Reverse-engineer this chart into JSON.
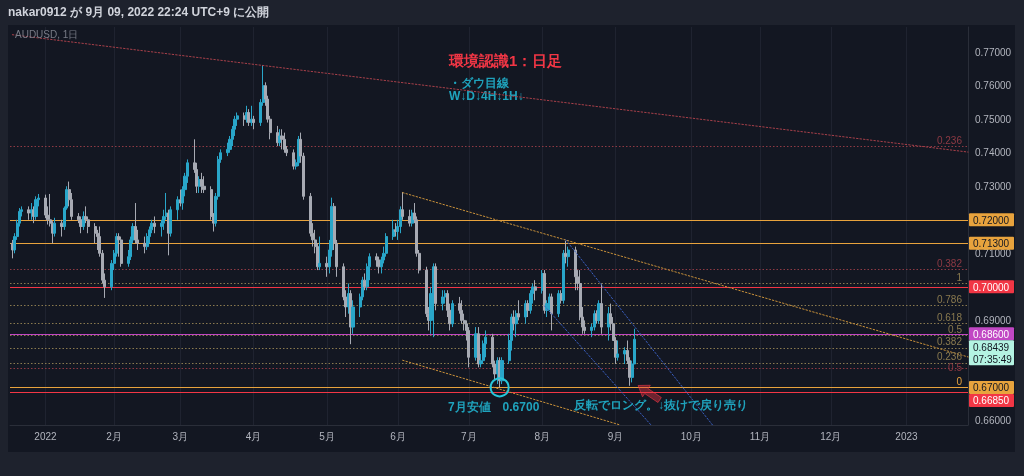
{
  "chart_data": {
    "type": "candlestick",
    "title": "環境認識1：日足",
    "subtitle": "・ダウ目線\nW↓D↓4H↓1H↓",
    "annotations": [
      "nakar0912 が 9月 09, 2022 22:24 UTC+9 に公開",
      "AUDUSD, 1日",
      "0.68439\n07:35:49",
      {
        "text": "7月安値　0.6700",
        "x": "2022-07-14",
        "y": 0.67
      },
      {
        "text": "反転でロング。↓抜けで戻り売り",
        "x": "2022-09-08",
        "y": 0.6685
      },
      {
        "text": "0.236",
        "y": 0.742
      },
      {
        "text": "0.382",
        "y": 0.7053
      },
      {
        "text": "1",
        "y": 0.701
      },
      {
        "text": "0.786",
        "y": 0.6944
      },
      {
        "text": "0.618",
        "y": 0.6892
      },
      {
        "text": "0.5",
        "y": 0.6855
      },
      {
        "text": "0.382",
        "y": 0.6818
      },
      {
        "text": "0.236",
        "y": 0.6773
      },
      {
        "text": "0.5",
        "y": 0.6758
      },
      {
        "text": "0",
        "y": 0.67
      }
    ],
    "xlim": [
      "2021-12-19",
      "2023-01-28"
    ],
    "xticks": [
      {
        "value": "2022-01-03",
        "label": "2022"
      },
      {
        "value": "2022-02-01",
        "label": "2月"
      },
      {
        "value": "2022-03-01",
        "label": "3月"
      },
      {
        "value": "2022-04-01",
        "label": "4月"
      },
      {
        "value": "2022-05-02",
        "label": "5月"
      },
      {
        "value": "2022-06-01",
        "label": "6月"
      },
      {
        "value": "2022-07-01",
        "label": "7月"
      },
      {
        "value": "2022-08-01",
        "label": "8月"
      },
      {
        "value": "2022-09-01",
        "label": "9月"
      },
      {
        "value": "2022-10-03",
        "label": "10月"
      },
      {
        "value": "2022-11-01",
        "label": "11月"
      },
      {
        "value": "2022-12-01",
        "label": "12月"
      },
      {
        "value": "2023-01-02",
        "label": "2023"
      }
    ],
    "ylim": [
      0.6588,
      0.7775
    ],
    "yticks": [
      {
        "value": 0.66,
        "label": "0.66000"
      },
      {
        "value": 0.69,
        "label": "0.69000"
      },
      {
        "value": 0.71,
        "label": "0.71000"
      },
      {
        "value": 0.73,
        "label": "0.73000"
      },
      {
        "value": 0.74,
        "label": "0.74000"
      },
      {
        "value": 0.75,
        "label": "0.75000"
      },
      {
        "value": 0.76,
        "label": "0.76000"
      },
      {
        "value": 0.77,
        "label": "0.77000"
      }
    ],
    "grid": "x",
    "series": [
      {
        "x": [
          "2021-12-20",
          "2021-12-21",
          "2021-12-22",
          "2021-12-23",
          "2021-12-24",
          "2021-12-27",
          "2021-12-28",
          "2021-12-29",
          "2021-12-30",
          "2021-12-31",
          "2022-01-03",
          "2022-01-04",
          "2022-01-05",
          "2022-01-06",
          "2022-01-07",
          "2022-01-10",
          "2022-01-11",
          "2022-01-12",
          "2022-01-13",
          "2022-01-14",
          "2022-01-17",
          "2022-01-18",
          "2022-01-19",
          "2022-01-20",
          "2022-01-21",
          "2022-01-24",
          "2022-01-25",
          "2022-01-26",
          "2022-01-27",
          "2022-01-28",
          "2022-01-31",
          "2022-02-01",
          "2022-02-02",
          "2022-02-03",
          "2022-02-04",
          "2022-02-07",
          "2022-02-08",
          "2022-02-09",
          "2022-02-10",
          "2022-02-11",
          "2022-02-14",
          "2022-02-15",
          "2022-02-16",
          "2022-02-17",
          "2022-02-18",
          "2022-02-21",
          "2022-02-22",
          "2022-02-23",
          "2022-02-24",
          "2022-02-25",
          "2022-02-28",
          "2022-03-01",
          "2022-03-02",
          "2022-03-03",
          "2022-03-04",
          "2022-03-07",
          "2022-03-08",
          "2022-03-09",
          "2022-03-10",
          "2022-03-11",
          "2022-03-14",
          "2022-03-15",
          "2022-03-16",
          "2022-03-17",
          "2022-03-18",
          "2022-03-21",
          "2022-03-22",
          "2022-03-23",
          "2022-03-24",
          "2022-03-25",
          "2022-03-28",
          "2022-03-29",
          "2022-03-30",
          "2022-03-31",
          "2022-04-01",
          "2022-04-04",
          "2022-04-05",
          "2022-04-06",
          "2022-04-07",
          "2022-04-08",
          "2022-04-11",
          "2022-04-12",
          "2022-04-13",
          "2022-04-14",
          "2022-04-15",
          "2022-04-18",
          "2022-04-19",
          "2022-04-20",
          "2022-04-21",
          "2022-04-22",
          "2022-04-25",
          "2022-04-26",
          "2022-04-27",
          "2022-04-28",
          "2022-04-29",
          "2022-05-02",
          "2022-05-03",
          "2022-05-04",
          "2022-05-05",
          "2022-05-06",
          "2022-05-09",
          "2022-05-10",
          "2022-05-11",
          "2022-05-12",
          "2022-05-13",
          "2022-05-16",
          "2022-05-17",
          "2022-05-18",
          "2022-05-19",
          "2022-05-20",
          "2022-05-23",
          "2022-05-24",
          "2022-05-25",
          "2022-05-26",
          "2022-05-27",
          "2022-05-30",
          "2022-05-31",
          "2022-06-01",
          "2022-06-02",
          "2022-06-03",
          "2022-06-06",
          "2022-06-07",
          "2022-06-08",
          "2022-06-09",
          "2022-06-10",
          "2022-06-13",
          "2022-06-14",
          "2022-06-15",
          "2022-06-16",
          "2022-06-17",
          "2022-06-20",
          "2022-06-21",
          "2022-06-22",
          "2022-06-23",
          "2022-06-24",
          "2022-06-27",
          "2022-06-28",
          "2022-06-29",
          "2022-06-30",
          "2022-07-01",
          "2022-07-04",
          "2022-07-05",
          "2022-07-06",
          "2022-07-07",
          "2022-07-08",
          "2022-07-11",
          "2022-07-12",
          "2022-07-13",
          "2022-07-14",
          "2022-07-15",
          "2022-07-18",
          "2022-07-19",
          "2022-07-20",
          "2022-07-21",
          "2022-07-22",
          "2022-07-25",
          "2022-07-26",
          "2022-07-27",
          "2022-07-28",
          "2022-07-29",
          "2022-08-01",
          "2022-08-02",
          "2022-08-03",
          "2022-08-04",
          "2022-08-05",
          "2022-08-08",
          "2022-08-09",
          "2022-08-10",
          "2022-08-11",
          "2022-08-12",
          "2022-08-15",
          "2022-08-16",
          "2022-08-17",
          "2022-08-18",
          "2022-08-19",
          "2022-08-22",
          "2022-08-23",
          "2022-08-24",
          "2022-08-25",
          "2022-08-26",
          "2022-08-29",
          "2022-08-30",
          "2022-08-31",
          "2022-09-01",
          "2022-09-02",
          "2022-09-05",
          "2022-09-06",
          "2022-09-07",
          "2022-09-08",
          "2022-09-09"
        ],
        "ohlc": [
          [
            0.713,
            0.714,
            0.7085,
            0.711
          ],
          [
            0.711,
            0.716,
            0.71,
            0.715
          ],
          [
            0.715,
            0.72,
            0.714,
            0.719
          ],
          [
            0.719,
            0.7235,
            0.718,
            0.7225
          ],
          [
            0.7225,
            0.724,
            0.721,
            0.723
          ],
          [
            0.723,
            0.724,
            0.72,
            0.722
          ],
          [
            0.722,
            0.725,
            0.72,
            0.723
          ],
          [
            0.723,
            0.724,
            0.719,
            0.721
          ],
          [
            0.721,
            0.727,
            0.72,
            0.726
          ],
          [
            0.726,
            0.7277,
            0.724,
            0.7265
          ],
          [
            0.7265,
            0.7275,
            0.7205,
            0.7214
          ],
          [
            0.7214,
            0.724,
            0.7186,
            0.72
          ],
          [
            0.72,
            0.7277,
            0.718,
            0.719
          ],
          [
            0.719,
            0.7196,
            0.713,
            0.716
          ],
          [
            0.716,
            0.7206,
            0.715,
            0.719
          ],
          [
            0.719,
            0.72,
            0.715,
            0.718
          ],
          [
            0.718,
            0.724,
            0.717,
            0.7235
          ],
          [
            0.7235,
            0.73,
            0.723,
            0.729
          ],
          [
            0.729,
            0.7314,
            0.724,
            0.726
          ],
          [
            0.726,
            0.728,
            0.72,
            0.721
          ],
          [
            0.721,
            0.722,
            0.719,
            0.72
          ],
          [
            0.72,
            0.721,
            0.716,
            0.718
          ],
          [
            0.718,
            0.7225,
            0.717,
            0.721
          ],
          [
            0.721,
            0.724,
            0.719,
            0.72
          ],
          [
            0.72,
            0.721,
            0.716,
            0.718
          ],
          [
            0.718,
            0.719,
            0.713,
            0.716
          ],
          [
            0.716,
            0.717,
            0.711,
            0.715
          ],
          [
            0.715,
            0.718,
            0.709,
            0.71
          ],
          [
            0.71,
            0.711,
            0.701,
            0.702
          ],
          [
            0.702,
            0.704,
            0.6967,
            0.7
          ],
          [
            0.7,
            0.708,
            0.699,
            0.707
          ],
          [
            0.707,
            0.711,
            0.705,
            0.71
          ],
          [
            0.71,
            0.716,
            0.709,
            0.715
          ],
          [
            0.715,
            0.716,
            0.709,
            0.714
          ],
          [
            0.714,
            0.715,
            0.706,
            0.707
          ],
          [
            0.707,
            0.711,
            0.706,
            0.709
          ],
          [
            0.709,
            0.715,
            0.708,
            0.714
          ],
          [
            0.714,
            0.719,
            0.713,
            0.718
          ],
          [
            0.718,
            0.725,
            0.713,
            0.714
          ],
          [
            0.714,
            0.717,
            0.711,
            0.713
          ],
          [
            0.713,
            0.715,
            0.71,
            0.712
          ],
          [
            0.712,
            0.716,
            0.711,
            0.715
          ],
          [
            0.715,
            0.718,
            0.713,
            0.717
          ],
          [
            0.717,
            0.72,
            0.716,
            0.719
          ],
          [
            0.719,
            0.721,
            0.716,
            0.718
          ],
          [
            0.718,
            0.72,
            0.715,
            0.719
          ],
          [
            0.719,
            0.723,
            0.717,
            0.721
          ],
          [
            0.721,
            0.728,
            0.72,
            0.722
          ],
          [
            0.722,
            0.723,
            0.7094,
            0.716
          ],
          [
            0.716,
            0.724,
            0.715,
            0.723
          ],
          [
            0.723,
            0.727,
            0.72,
            0.726
          ],
          [
            0.726,
            0.729,
            0.724,
            0.725
          ],
          [
            0.725,
            0.73,
            0.723,
            0.729
          ],
          [
            0.729,
            0.734,
            0.727,
            0.733
          ],
          [
            0.733,
            0.738,
            0.731,
            0.737
          ],
          [
            0.737,
            0.744,
            0.734,
            0.735
          ],
          [
            0.735,
            0.737,
            0.728,
            0.73
          ],
          [
            0.73,
            0.733,
            0.728,
            0.732
          ],
          [
            0.732,
            0.734,
            0.728,
            0.73
          ],
          [
            0.73,
            0.733,
            0.728,
            0.729
          ],
          [
            0.729,
            0.73,
            0.72,
            0.721
          ],
          [
            0.721,
            0.722,
            0.7165,
            0.719
          ],
          [
            0.719,
            0.728,
            0.718,
            0.727
          ],
          [
            0.727,
            0.739,
            0.726,
            0.738
          ],
          [
            0.738,
            0.741,
            0.737,
            0.74
          ],
          [
            0.74,
            0.743,
            0.739,
            0.741
          ],
          [
            0.741,
            0.745,
            0.74,
            0.744
          ],
          [
            0.744,
            0.748,
            0.742,
            0.747
          ],
          [
            0.747,
            0.751,
            0.745,
            0.75
          ],
          [
            0.75,
            0.752,
            0.748,
            0.751
          ],
          [
            0.751,
            0.752,
            0.748,
            0.75
          ],
          [
            0.75,
            0.754,
            0.749,
            0.752
          ],
          [
            0.752,
            0.753,
            0.748,
            0.749
          ],
          [
            0.749,
            0.754,
            0.748,
            0.75
          ],
          [
            0.75,
            0.751,
            0.747,
            0.749
          ],
          [
            0.749,
            0.756,
            0.748,
            0.755
          ],
          [
            0.755,
            0.7661,
            0.754,
            0.76
          ],
          [
            0.76,
            0.761,
            0.754,
            0.756
          ],
          [
            0.756,
            0.757,
            0.749,
            0.75
          ],
          [
            0.75,
            0.751,
            0.744,
            0.746
          ],
          [
            0.746,
            0.748,
            0.742,
            0.743
          ],
          [
            0.743,
            0.747,
            0.742,
            0.745
          ],
          [
            0.745,
            0.747,
            0.741,
            0.744
          ],
          [
            0.744,
            0.746,
            0.74,
            0.741
          ],
          [
            0.741,
            0.742,
            0.739,
            0.74
          ],
          [
            0.74,
            0.741,
            0.735,
            0.736
          ],
          [
            0.736,
            0.738,
            0.735,
            0.737
          ],
          [
            0.737,
            0.745,
            0.736,
            0.744
          ],
          [
            0.744,
            0.746,
            0.737,
            0.739
          ],
          [
            0.739,
            0.74,
            0.726,
            0.727
          ],
          [
            0.727,
            0.728,
            0.715,
            0.716
          ],
          [
            0.716,
            0.719,
            0.712,
            0.714
          ],
          [
            0.714,
            0.717,
            0.71,
            0.712
          ],
          [
            0.712,
            0.713,
            0.705,
            0.706
          ],
          [
            0.706,
            0.715,
            0.705,
            0.707
          ],
          [
            0.707,
            0.709,
            0.703,
            0.706
          ],
          [
            0.706,
            0.714,
            0.704,
            0.711
          ],
          [
            0.711,
            0.7266,
            0.709,
            0.724
          ],
          [
            0.724,
            0.725,
            0.711,
            0.713
          ],
          [
            0.713,
            0.714,
            0.703,
            0.706
          ],
          [
            0.706,
            0.707,
            0.696,
            0.697
          ],
          [
            0.697,
            0.699,
            0.691,
            0.694
          ],
          [
            0.694,
            0.701,
            0.692,
            0.698
          ],
          [
            0.698,
            0.699,
            0.6829,
            0.688
          ],
          [
            0.688,
            0.696,
            0.686,
            0.694
          ],
          [
            0.694,
            0.698,
            0.691,
            0.697
          ],
          [
            0.697,
            0.703,
            0.696,
            0.702
          ],
          [
            0.702,
            0.704,
            0.699,
            0.7
          ],
          [
            0.7,
            0.707,
            0.699,
            0.706
          ],
          [
            0.706,
            0.71,
            0.702,
            0.709
          ],
          [
            0.709,
            0.71,
            0.706,
            0.708
          ],
          [
            0.708,
            0.709,
            0.704,
            0.706
          ],
          [
            0.706,
            0.709,
            0.704,
            0.708
          ],
          [
            0.708,
            0.712,
            0.707,
            0.71
          ],
          [
            0.71,
            0.716,
            0.709,
            0.715
          ],
          [
            0.715,
            0.72,
            0.714,
            0.717
          ],
          [
            0.717,
            0.719,
            0.715,
            0.7165
          ],
          [
            0.7165,
            0.72,
            0.714,
            0.718
          ],
          [
            0.718,
            0.724,
            0.716,
            0.723
          ],
          [
            0.723,
            0.7283,
            0.72,
            0.721
          ],
          [
            0.721,
            0.723,
            0.718,
            0.719
          ],
          [
            0.719,
            0.723,
            0.718,
            0.722
          ],
          [
            0.722,
            0.725,
            0.719,
            0.72
          ],
          [
            0.72,
            0.721,
            0.709,
            0.71
          ],
          [
            0.71,
            0.711,
            0.704,
            0.705
          ],
          [
            0.705,
            0.706,
            0.691,
            0.692
          ],
          [
            0.692,
            0.694,
            0.687,
            0.69
          ],
          [
            0.69,
            0.7,
            0.686,
            0.698
          ],
          [
            0.698,
            0.707,
            0.685,
            0.706
          ],
          [
            0.706,
            0.707,
            0.693,
            0.695
          ],
          [
            0.695,
            0.699,
            0.693,
            0.697
          ],
          [
            0.697,
            0.699,
            0.695,
            0.698
          ],
          [
            0.698,
            0.699,
            0.691,
            0.693
          ],
          [
            0.693,
            0.695,
            0.687,
            0.689
          ],
          [
            0.689,
            0.696,
            0.688,
            0.695
          ],
          [
            0.695,
            0.697,
            0.692,
            0.693
          ],
          [
            0.693,
            0.696,
            0.689,
            0.69
          ],
          [
            0.69,
            0.692,
            0.687,
            0.689
          ],
          [
            0.689,
            0.69,
            0.684,
            0.687
          ],
          [
            0.687,
            0.688,
            0.676,
            0.679
          ],
          [
            0.679,
            0.688,
            0.678,
            0.686
          ],
          [
            0.686,
            0.688,
            0.676,
            0.677
          ],
          [
            0.677,
            0.68,
            0.676,
            0.678
          ],
          [
            0.678,
            0.684,
            0.677,
            0.683
          ],
          [
            0.683,
            0.687,
            0.679,
            0.685
          ],
          [
            0.685,
            0.686,
            0.676,
            0.677
          ],
          [
            0.677,
            0.678,
            0.672,
            0.674
          ],
          [
            0.674,
            0.679,
            0.671,
            0.678
          ],
          [
            0.678,
            0.679,
            0.67,
            0.672
          ],
          [
            0.672,
            0.679,
            0.671,
            0.678
          ],
          [
            0.678,
            0.686,
            0.677,
            0.684
          ],
          [
            0.684,
            0.692,
            0.681,
            0.691
          ],
          [
            0.691,
            0.693,
            0.687,
            0.689
          ],
          [
            0.689,
            0.693,
            0.685,
            0.692
          ],
          [
            0.692,
            0.696,
            0.69,
            0.691
          ],
          [
            0.691,
            0.696,
            0.689,
            0.695
          ],
          [
            0.695,
            0.696,
            0.691,
            0.693
          ],
          [
            0.693,
            0.699,
            0.692,
            0.698
          ],
          [
            0.698,
            0.701,
            0.695,
            0.7
          ],
          [
            0.7,
            0.702,
            0.696,
            0.699
          ],
          [
            0.699,
            0.705,
            0.698,
            0.704
          ],
          [
            0.704,
            0.705,
            0.692,
            0.693
          ],
          [
            0.693,
            0.696,
            0.691,
            0.695
          ],
          [
            0.695,
            0.698,
            0.693,
            0.697
          ],
          [
            0.697,
            0.698,
            0.687,
            0.692
          ],
          [
            0.692,
            0.699,
            0.691,
            0.698
          ],
          [
            0.698,
            0.699,
            0.695,
            0.696
          ],
          [
            0.696,
            0.711,
            0.695,
            0.71
          ],
          [
            0.71,
            0.7137,
            0.707,
            0.709
          ],
          [
            0.709,
            0.712,
            0.706,
            0.711
          ],
          [
            0.711,
            0.712,
            0.699,
            0.703
          ],
          [
            0.703,
            0.705,
            0.699,
            0.701
          ],
          [
            0.701,
            0.705,
            0.69,
            0.691
          ],
          [
            0.691,
            0.694,
            0.686,
            0.688
          ],
          [
            0.688,
            0.69,
            0.686,
            0.687
          ],
          [
            0.687,
            0.689,
            0.685,
            0.688
          ],
          [
            0.688,
            0.693,
            0.687,
            0.692
          ],
          [
            0.692,
            0.693,
            0.689,
            0.69
          ],
          [
            0.69,
            0.696,
            0.689,
            0.695
          ],
          [
            0.695,
            0.701,
            0.686,
            0.688
          ],
          [
            0.688,
            0.694,
            0.684,
            0.692
          ],
          [
            0.692,
            0.695,
            0.687,
            0.689
          ],
          [
            0.689,
            0.691,
            0.684,
            0.684
          ],
          [
            0.684,
            0.685,
            0.677,
            0.679
          ],
          [
            0.679,
            0.684,
            0.678,
            0.68
          ],
          [
            0.68,
            0.682,
            0.677,
            0.681
          ],
          [
            0.681,
            0.684,
            0.677,
            0.678
          ],
          [
            0.678,
            0.679,
            0.6705,
            0.673
          ],
          [
            0.673,
            0.678,
            0.6715,
            0.677
          ],
          [
            0.677,
            0.6875,
            0.677,
            0.68439
          ]
        ],
        "colors": [
          "#a7aab3",
          "#29a6c9",
          "#29a6c9",
          "#29a6c9",
          "#29a6c9",
          "#a7aab3",
          "#29a6c9",
          "#a7aab3",
          "#29a6c9",
          "#29a6c9",
          "#a7aab3",
          "#a7aab3",
          "#a7aab3",
          "#a7aab3",
          "#29a6c9",
          "#a7aab3",
          "#29a6c9",
          "#29a6c9",
          "#a7aab3",
          "#a7aab3",
          "#a7aab3",
          "#a7aab3",
          "#29a6c9",
          "#a7aab3",
          "#a7aab3",
          "#a7aab3",
          "#a7aab3",
          "#a7aab3",
          "#a7aab3",
          "#a7aab3",
          "#29a6c9",
          "#29a6c9",
          "#29a6c9",
          "#a7aab3",
          "#a7aab3",
          "#29a6c9",
          "#29a6c9",
          "#29a6c9",
          "#a7aab3",
          "#a7aab3",
          "#a7aab3",
          "#29a6c9",
          "#29a6c9",
          "#29a6c9",
          "#a7aab3",
          "#29a6c9",
          "#29a6c9",
          "#29a6c9",
          "#a7aab3",
          "#29a6c9",
          "#29a6c9",
          "#a7aab3",
          "#29a6c9",
          "#29a6c9",
          "#29a6c9",
          "#a7aab3",
          "#a7aab3",
          "#29a6c9",
          "#a7aab3",
          "#a7aab3",
          "#a7aab3",
          "#a7aab3",
          "#29a6c9",
          "#29a6c9",
          "#29a6c9",
          "#29a6c9",
          "#29a6c9",
          "#29a6c9",
          "#29a6c9",
          "#29a6c9",
          "#a7aab3",
          "#29a6c9",
          "#a7aab3",
          "#29a6c9",
          "#a7aab3",
          "#29a6c9",
          "#29a6c9",
          "#a7aab3",
          "#a7aab3",
          "#a7aab3",
          "#a7aab3",
          "#29a6c9",
          "#a7aab3",
          "#a7aab3",
          "#a7aab3",
          "#a7aab3",
          "#29a6c9",
          "#29a6c9",
          "#a7aab3",
          "#a7aab3",
          "#a7aab3",
          "#a7aab3",
          "#a7aab3",
          "#a7aab3",
          "#29a6c9",
          "#a7aab3",
          "#29a6c9",
          "#29a6c9",
          "#a7aab3",
          "#a7aab3",
          "#a7aab3",
          "#a7aab3",
          "#29a6c9",
          "#a7aab3",
          "#29a6c9",
          "#29a6c9",
          "#29a6c9",
          "#a7aab3",
          "#29a6c9",
          "#29a6c9",
          "#a7aab3",
          "#a7aab3",
          "#29a6c9",
          "#29a6c9",
          "#29a6c9",
          "#29a6c9",
          "#a7aab3",
          "#29a6c9",
          "#29a6c9",
          "#a7aab3",
          "#a7aab3",
          "#29a6c9",
          "#a7aab3",
          "#a7aab3",
          "#a7aab3",
          "#a7aab3",
          "#a7aab3",
          "#29a6c9",
          "#29a6c9",
          "#a7aab3",
          "#29a6c9",
          "#29a6c9",
          "#a7aab3",
          "#a7aab3",
          "#29a6c9",
          "#a7aab3",
          "#a7aab3",
          "#a7aab3",
          "#a7aab3",
          "#a7aab3",
          "#29a6c9",
          "#a7aab3",
          "#29a6c9",
          "#29a6c9",
          "#29a6c9",
          "#a7aab3",
          "#a7aab3",
          "#29a6c9",
          "#a7aab3",
          "#29a6c9",
          "#29a6c9",
          "#29a6c9",
          "#a7aab3",
          "#29a6c9",
          "#a7aab3",
          "#29a6c9",
          "#a7aab3",
          "#29a6c9",
          "#29a6c9",
          "#a7aab3",
          "#29a6c9",
          "#a7aab3",
          "#29a6c9",
          "#29a6c9",
          "#a7aab3",
          "#29a6c9",
          "#a7aab3",
          "#29a6c9",
          "#a7aab3",
          "#29a6c9",
          "#a7aab3",
          "#a7aab3",
          "#a7aab3",
          "#a7aab3",
          "#a7aab3",
          "#29a6c9",
          "#29a6c9",
          "#a7aab3",
          "#29a6c9",
          "#a7aab3",
          "#29a6c9",
          "#a7aab3",
          "#a7aab3",
          "#a7aab3",
          "#29a6c9",
          "#29a6c9",
          "#a7aab3",
          "#a7aab3",
          "#29a6c9",
          "#29a6c9"
        ]
      },
      {
        "type": "line",
        "x": [
          "2021-12-20",
          "2023-01-28"
        ],
        "values": [
          0.7752,
          0.7402
        ],
        "color": "#a8404a",
        "line_style": "dotted"
      },
      {
        "type": "line",
        "x": [
          "2022-06-03",
          "2023-01-28"
        ],
        "values": [
          0.7281,
          0.6791
        ],
        "color": "#c9913a",
        "line_style": "dotted"
      },
      {
        "type": "line",
        "x": [
          "2022-06-03",
          "2022-09-03"
        ],
        "values": [
          0.6781,
          0.6588
        ],
        "color": "#c9913a",
        "line_style": "dotted"
      },
      {
        "type": "line",
        "x": [
          "2022-08-11",
          "2022-10-12"
        ],
        "values": [
          0.714,
          0.6588
        ],
        "color": "#3a5fc0",
        "line_style": "dotted"
      },
      {
        "type": "line",
        "x": [
          "2022-08-02",
          "2022-09-16"
        ],
        "values": [
          0.6943,
          0.6588
        ],
        "color": "#3a5fc0",
        "line_style": "dotted"
      }
    ],
    "ref_lines": [
      {
        "axis": "y",
        "value": 0.742,
        "color": "#8e3a44",
        "line_style": "dotted"
      },
      {
        "axis": "y",
        "value": 0.72,
        "label": "0.72000",
        "color": "#e8a33d",
        "line_style": "solid"
      },
      {
        "axis": "y",
        "value": 0.713,
        "label": "0.71300",
        "color": "#e8a33d",
        "line_style": "solid"
      },
      {
        "axis": "y",
        "value": 0.7053,
        "color": "#8e3a44",
        "line_style": "dotted"
      },
      {
        "axis": "y",
        "value": 0.701,
        "color": "#8a7a4f",
        "line_style": "dotted"
      },
      {
        "axis": "y",
        "value": 0.7,
        "label": "0.70000",
        "color": "#f23645",
        "line_style": "solid"
      },
      {
        "axis": "y",
        "value": 0.6944,
        "color": "#8a7a4f",
        "line_style": "dotted"
      },
      {
        "axis": "y",
        "value": 0.6892,
        "color": "#8a7a4f",
        "line_style": "dotted"
      },
      {
        "axis": "y",
        "value": 0.686,
        "label": "0.68600",
        "color": "#c147c4",
        "line_style": "solid"
      },
      {
        "axis": "y",
        "value": 0.6855,
        "color": "#8a7a4f",
        "line_style": "dotted"
      },
      {
        "axis": "y",
        "value": 0.6818,
        "color": "#8a7a4f",
        "line_style": "dotted"
      },
      {
        "axis": "y",
        "value": 0.6773,
        "color": "#8a7a4f",
        "line_style": "dotted"
      },
      {
        "axis": "y",
        "value": 0.6758,
        "color": "#8e3a44",
        "line_style": "dotted"
      },
      {
        "axis": "y",
        "value": 0.67,
        "label": "0.67000",
        "color": "#e8a33d",
        "line_style": "solid"
      },
      {
        "axis": "y",
        "value": 0.6685,
        "label": "0.66850",
        "color": "#f23645",
        "line_style": "solid"
      }
    ]
  }
}
